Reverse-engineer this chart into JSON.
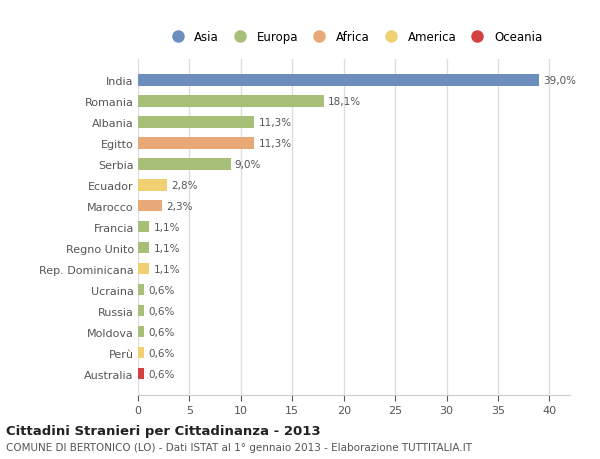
{
  "categories": [
    "India",
    "Romania",
    "Albania",
    "Egitto",
    "Serbia",
    "Ecuador",
    "Marocco",
    "Francia",
    "Regno Unito",
    "Rep. Dominicana",
    "Ucraina",
    "Russia",
    "Moldova",
    "Perù",
    "Australia"
  ],
  "values": [
    39.0,
    18.1,
    11.3,
    11.3,
    9.0,
    2.8,
    2.3,
    1.1,
    1.1,
    1.1,
    0.6,
    0.6,
    0.6,
    0.6,
    0.6
  ],
  "labels": [
    "39,0%",
    "18,1%",
    "11,3%",
    "11,3%",
    "9,0%",
    "2,8%",
    "2,3%",
    "1,1%",
    "1,1%",
    "1,1%",
    "0,6%",
    "0,6%",
    "0,6%",
    "0,6%",
    "0,6%"
  ],
  "colors": [
    "#6b8ebf",
    "#a8bf78",
    "#a8bf78",
    "#e8a878",
    "#a8bf78",
    "#f0d070",
    "#e8a878",
    "#a8bf78",
    "#a8bf78",
    "#f0d070",
    "#a8bf78",
    "#a8bf78",
    "#a8bf78",
    "#f0d070",
    "#d44040"
  ],
  "continent_colors": {
    "Asia": "#6b8ebf",
    "Europa": "#a8bf78",
    "Africa": "#e8a878",
    "America": "#f0d070",
    "Oceania": "#d44040"
  },
  "legend_order": [
    "Asia",
    "Europa",
    "Africa",
    "America",
    "Oceania"
  ],
  "title": "Cittadini Stranieri per Cittadinanza - 2013",
  "subtitle": "COMUNE DI BERTONICO (LO) - Dati ISTAT al 1° gennaio 2013 - Elaborazione TUTTITALIA.IT",
  "xlim": [
    0,
    42
  ],
  "xticks": [
    0,
    5,
    10,
    15,
    20,
    25,
    30,
    35,
    40
  ],
  "background_color": "#ffffff",
  "plot_bg_color": "#ffffff",
  "grid_color": "#dddddd",
  "bar_height": 0.55
}
